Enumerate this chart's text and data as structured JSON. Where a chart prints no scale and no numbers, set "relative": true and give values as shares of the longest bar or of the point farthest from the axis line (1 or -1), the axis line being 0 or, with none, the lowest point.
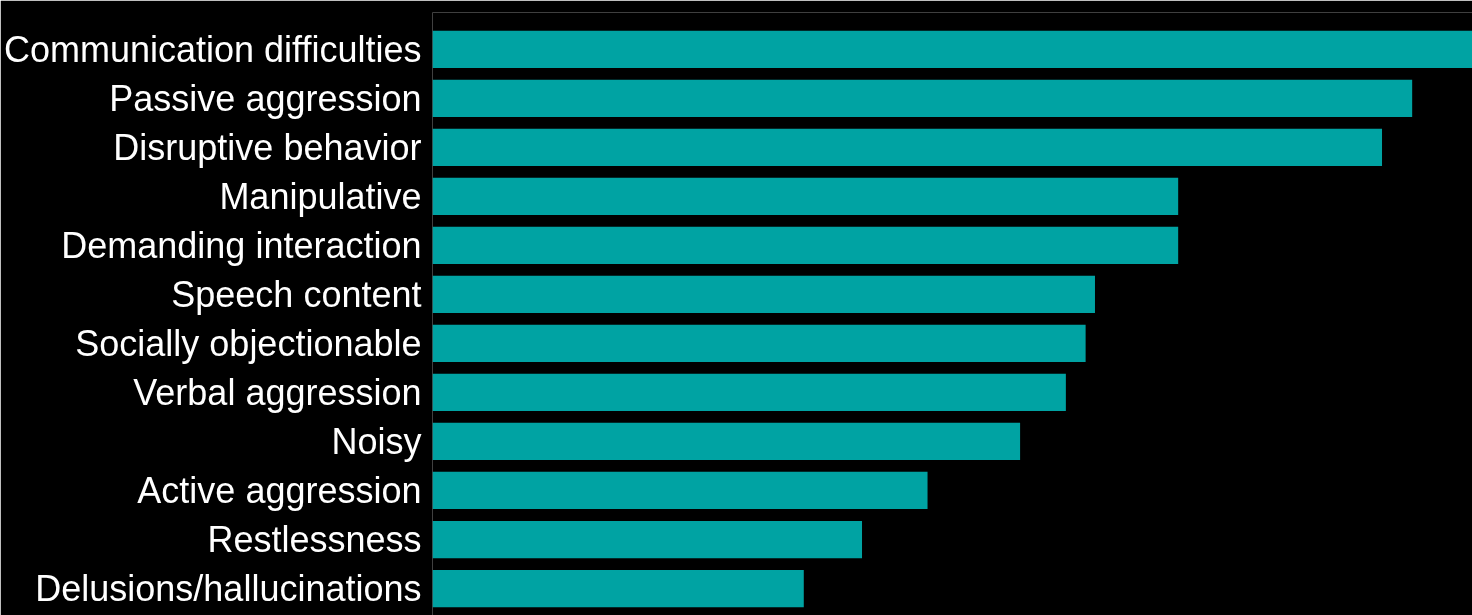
{
  "chart_data": {
    "type": "bar",
    "orientation": "horizontal",
    "relative": true,
    "categories": [
      "Communication difficulties",
      "Passive aggression",
      "Disruptive behavior",
      "Manipulative",
      "Demanding interaction",
      "Speech content",
      "Socially objectionable",
      "Verbal aggression",
      "Noisy",
      "Active aggression",
      "Restlessness",
      "Delusions/hallucinations"
    ],
    "values": [
      1,
      0.942,
      0.913,
      0.717,
      0.717,
      0.637,
      0.628,
      0.609,
      0.565,
      0.476,
      0.413,
      0.357
    ],
    "color": "#00a3a3",
    "grid": false
  }
}
